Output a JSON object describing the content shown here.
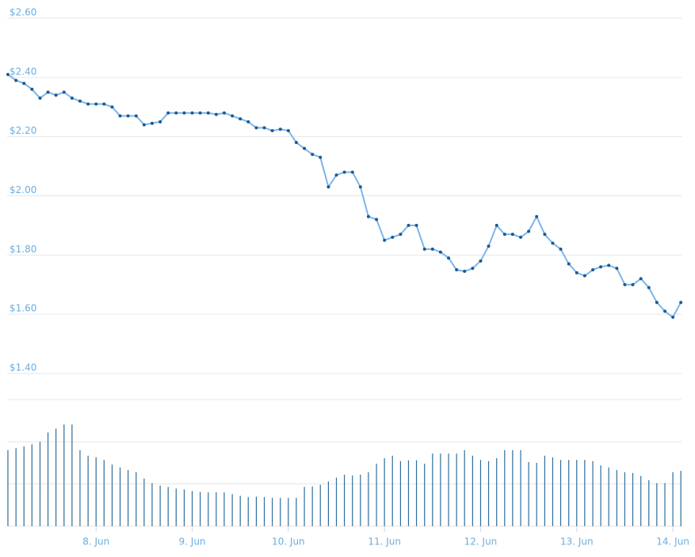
{
  "chart_data": {
    "type": "line",
    "x": [
      7.083,
      7.167,
      7.25,
      7.333,
      7.417,
      7.5,
      7.583,
      7.667,
      7.75,
      7.833,
      7.917,
      8,
      8.083,
      8.167,
      8.25,
      8.333,
      8.417,
      8.5,
      8.583,
      8.667,
      8.75,
      8.833,
      8.917,
      9,
      9.083,
      9.167,
      9.25,
      9.333,
      9.417,
      9.5,
      9.583,
      9.667,
      9.75,
      9.833,
      9.917,
      10,
      10.083,
      10.167,
      10.25,
      10.333,
      10.417,
      10.5,
      10.583,
      10.667,
      10.75,
      10.833,
      10.917,
      11,
      11.083,
      11.167,
      11.25,
      11.333,
      11.417,
      11.5,
      11.583,
      11.667,
      11.75,
      11.833,
      11.917,
      12,
      12.083,
      12.167,
      12.25,
      12.333,
      12.417,
      12.5,
      12.583,
      12.667,
      12.75,
      12.833,
      12.917,
      13,
      13.083,
      13.167,
      13.25,
      13.333,
      13.417,
      13.5,
      13.583,
      13.667,
      13.75,
      13.833,
      13.917,
      14,
      14.083
    ],
    "series": [
      {
        "color": "#7cb5ec",
        "marker_color": "#1b5b8f",
        "values": [
          2.41,
          2.39,
          2.38,
          2.36,
          2.33,
          2.35,
          2.34,
          2.35,
          2.33,
          2.32,
          2.31,
          2.31,
          2.31,
          2.3,
          2.27,
          2.27,
          2.27,
          2.24,
          2.245,
          2.25,
          2.28,
          2.28,
          2.28,
          2.28,
          2.28,
          2.28,
          2.275,
          2.28,
          2.27,
          2.26,
          2.25,
          2.23,
          2.23,
          2.22,
          2.225,
          2.22,
          2.18,
          2.16,
          2.14,
          2.13,
          2.03,
          2.07,
          2.08,
          2.08,
          2.03,
          1.93,
          1.92,
          1.85,
          1.86,
          1.87,
          1.9,
          1.9,
          1.82,
          1.82,
          1.81,
          1.79,
          1.75,
          1.745,
          1.755,
          1.78,
          1.83,
          1.9,
          1.87,
          1.87,
          1.86,
          1.88,
          1.93,
          1.87,
          1.84,
          1.82,
          1.77,
          1.74,
          1.73,
          1.75,
          1.76,
          1.765,
          1.755,
          1.7,
          1.7,
          1.72,
          1.69,
          1.64,
          1.61,
          1.59,
          1.64
        ]
      },
      {
        "type": "bar",
        "axis": "y2",
        "color": "#2f6e9c",
        "values": [
          1.8,
          1.85,
          1.89,
          1.94,
          2.0,
          2.22,
          2.31,
          2.41,
          2.41,
          1.8,
          1.67,
          1.63,
          1.57,
          1.46,
          1.39,
          1.33,
          1.28,
          1.13,
          1.02,
          0.96,
          0.93,
          0.89,
          0.87,
          0.83,
          0.81,
          0.8,
          0.8,
          0.8,
          0.76,
          0.72,
          0.69,
          0.7,
          0.69,
          0.67,
          0.67,
          0.67,
          0.67,
          0.93,
          0.94,
          0.98,
          1.06,
          1.15,
          1.22,
          1.2,
          1.22,
          1.28,
          1.48,
          1.61,
          1.67,
          1.54,
          1.56,
          1.56,
          1.48,
          1.72,
          1.72,
          1.72,
          1.72,
          1.8,
          1.67,
          1.57,
          1.54,
          1.61,
          1.8,
          1.8,
          1.8,
          1.52,
          1.5,
          1.67,
          1.63,
          1.57,
          1.57,
          1.57,
          1.57,
          1.54,
          1.44,
          1.39,
          1.33,
          1.28,
          1.26,
          1.19,
          1.09,
          1.02,
          1.02,
          1.28,
          1.31
        ]
      }
    ],
    "xlim": [
      7.075,
      14.09
    ],
    "xticks": [
      {
        "value": 8,
        "label": "8. Jun"
      },
      {
        "value": 9,
        "label": "9. Jun"
      },
      {
        "value": 10,
        "label": "10. Jun"
      },
      {
        "value": 11,
        "label": "11. Jun"
      },
      {
        "value": 12,
        "label": "12. Jun"
      },
      {
        "value": 13,
        "label": "13. Jun"
      },
      {
        "value": 14,
        "label": "14. Jun"
      }
    ],
    "ylim": [
      1.4,
      2.6
    ],
    "yticks": [
      {
        "value": 2.6,
        "label": "$2.60"
      },
      {
        "value": 2.4,
        "label": "$2.40"
      },
      {
        "value": 2.2,
        "label": "$2.20"
      },
      {
        "value": 2.0,
        "label": "$2.00"
      },
      {
        "value": 1.8,
        "label": "$1.80"
      },
      {
        "value": 1.6,
        "label": "$1.60"
      },
      {
        "value": 1.4,
        "label": "$1.40"
      }
    ],
    "y2lim": [
      0,
      3
    ],
    "y2ticks": [
      0,
      1,
      2,
      3
    ],
    "y2tick_labels": false,
    "grid": true
  }
}
